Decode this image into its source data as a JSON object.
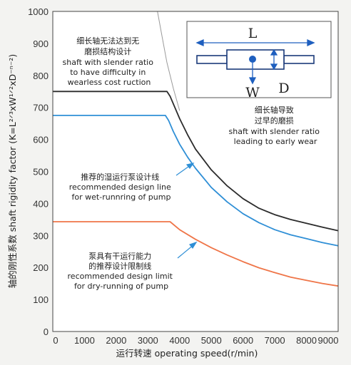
{
  "chart_data": {
    "type": "line",
    "xlabel": "运行转速 operating speed(r/min)",
    "ylabel": "轴的刚性系数 shaft rigidity factor (K=L²ᐟ³xW¹ᐟ²xD⁻ⁿ⁻²)",
    "xlim": [
      0,
      9000
    ],
    "ylim": [
      0,
      1000
    ],
    "x_ticks": [
      0,
      1000,
      2000,
      3000,
      4000,
      5000,
      6000,
      7000,
      8000,
      9000
    ],
    "y_ticks": [
      0,
      100,
      200,
      300,
      400,
      500,
      600,
      700,
      800,
      900,
      1000
    ],
    "grid": false,
    "series": [
      {
        "color": "#2b2b2b",
        "x": [
          0,
          3600,
          3700,
          3850,
          4000,
          4250,
          4500,
          5000,
          5500,
          6000,
          6500,
          7000,
          7500,
          8000,
          8500,
          9000
        ],
        "y": [
          750,
          750,
          735,
          700,
          665,
          615,
          570,
          505,
          455,
          415,
          385,
          365,
          350,
          338,
          326,
          315
        ]
      },
      {
        "color": "#2f8fd6",
        "x": [
          0,
          3550,
          3650,
          3800,
          4000,
          4250,
          4500,
          5000,
          5500,
          6000,
          6500,
          7000,
          7500,
          8000,
          8500,
          9000
        ],
        "y": [
          675,
          675,
          660,
          625,
          585,
          545,
          510,
          450,
          405,
          368,
          340,
          318,
          302,
          290,
          278,
          268
        ]
      },
      {
        "color": "#ef7548",
        "x": [
          0,
          3700,
          4000,
          4500,
          5000,
          5500,
          6000,
          6500,
          7000,
          7500,
          8000,
          8500,
          9000
        ],
        "y": [
          343,
          343,
          318,
          288,
          262,
          239,
          218,
          199,
          184,
          170,
          160,
          150,
          142
        ]
      },
      {
        "color": "#9a9a9a",
        "x": [
          3300,
          3450,
          3600,
          3800,
          4000
        ],
        "y": [
          1000,
          920,
          840,
          760,
          690
        ]
      }
    ],
    "annotations": [
      {
        "lines": [
          "细长轴无法达到无",
          "磨损结构设计",
          "shaft with slender ratio",
          "to have difficulty in",
          "wearless cost ruction"
        ]
      },
      {
        "lines": [
          "细长轴导致",
          "过早的磨损",
          "shaft with slender ratio",
          "leading to early wear"
        ]
      },
      {
        "lines": [
          "推荐的湿运行泵设计线",
          "recommended design line",
          "for wet-runnring of pump"
        ]
      },
      {
        "lines": [
          "泵具有干运行能力",
          "的推荐设计限制线",
          "recommended design limit",
          "for dry-running of pump"
        ]
      }
    ],
    "inset": {
      "labels": [
        "L",
        "W",
        "D"
      ],
      "border_color": "#1a3a7a"
    }
  }
}
